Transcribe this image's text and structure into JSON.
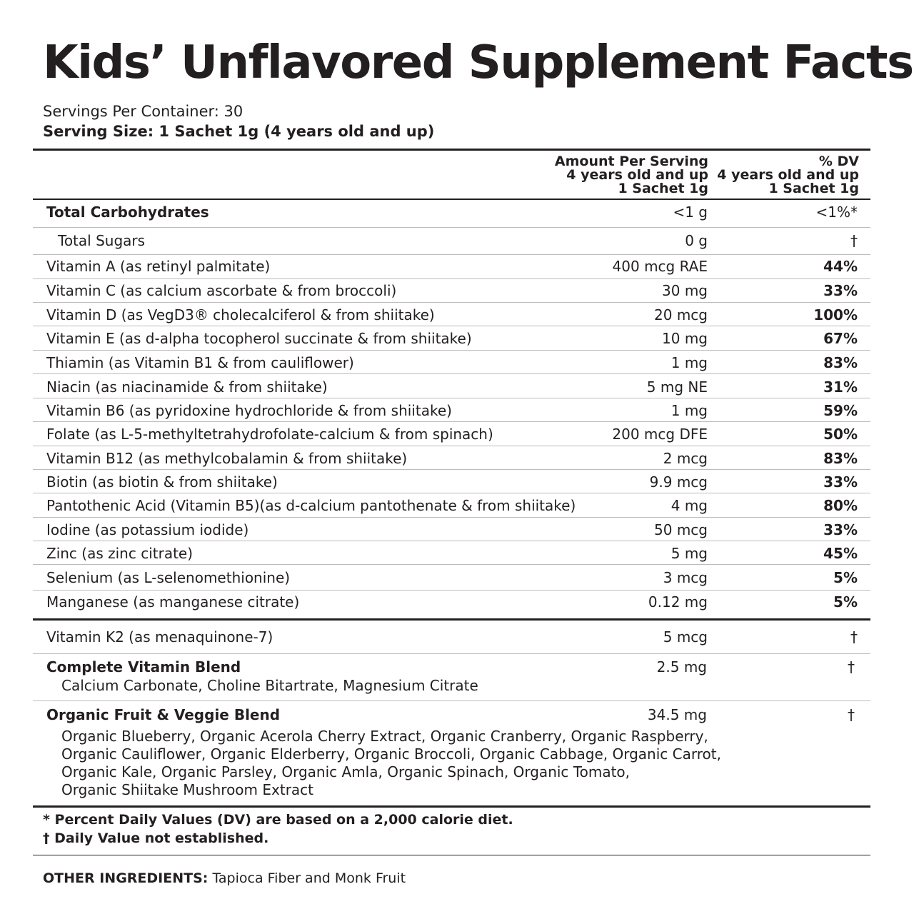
{
  "title": "Kids’ Unflavored Supplement Facts",
  "servings_per_container": "Servings Per Container: 30",
  "serving_size": "Serving Size: 1 Sachet 1g (4 years old and up)",
  "header": {
    "amount": [
      "Amount Per Serving",
      "4 years old and up",
      "1 Sachet 1g"
    ],
    "dv": [
      "% DV",
      "4 years old and up",
      "1 Sachet 1g"
    ]
  },
  "rows": [
    {
      "name": "Total Carbohydrates",
      "amount": "<1 g",
      "dv": "<1%*"
    },
    {
      "name": "Total Sugars",
      "amount": "0 g",
      "dv": "†"
    },
    {
      "name": "Vitamin A (as retinyl palmitate)",
      "amount": "400 mcg RAE",
      "dv": "44%"
    },
    {
      "name": "Vitamin C (as calcium ascorbate & from broccoli)",
      "amount": "30 mg",
      "dv": "33%"
    },
    {
      "name": "Vitamin D (as VegD3® cholecalciferol & from shiitake)",
      "amount": "20 mcg",
      "dv": "100%"
    },
    {
      "name": "Vitamin E (as d-alpha tocopherol succinate & from shiitake)",
      "amount": "10 mg",
      "dv": "67%"
    },
    {
      "name": "Thiamin (as Vitamin B1 & from cauliflower)",
      "amount": "1 mg",
      "dv": "83%"
    },
    {
      "name": "Niacin (as niacinamide & from shiitake)",
      "amount": "5 mg NE",
      "dv": "31%"
    },
    {
      "name": "Vitamin B6 (as pyridoxine hydrochloride & from shiitake)",
      "amount": "1 mg",
      "dv": "59%"
    },
    {
      "name": "Folate (as L-5-methyltetrahydrofolate-calcium & from spinach)",
      "amount": "200 mcg DFE",
      "dv": "50%"
    },
    {
      "name": "Vitamin B12 (as methylcobalamin & from shiitake)",
      "amount": "2 mcg",
      "dv": "83%"
    },
    {
      "name": "Biotin (as biotin & from shiitake)",
      "amount": "9.9 mcg",
      "dv": "33%"
    },
    {
      "name": "Pantothenic Acid (Vitamin B5)(as d-calcium pantothenate & from shiitake)",
      "amount": "4 mg",
      "dv": "80%"
    },
    {
      "name": "Iodine (as potassium iodide)",
      "amount": "50 mcg",
      "dv": "33%"
    },
    {
      "name": "Zinc (as zinc citrate)",
      "amount": "5 mg",
      "dv": "45%"
    },
    {
      "name": "Selenium (as L-selenomethionine)",
      "amount": "3 mcg",
      "dv": "5%"
    },
    {
      "name": "Manganese (as manganese citrate)",
      "amount": "0.12 mg",
      "dv": "5%"
    }
  ],
  "k2": {
    "name": "Vitamin K2 (as menaquinone-7)",
    "amount": "5 mcg",
    "dv": "†"
  },
  "vitamin_blend": {
    "name": "Complete Vitamin Blend",
    "amount": "2.5 mg",
    "dv": "†",
    "ingredients": "Calcium Carbonate, Choline Bitartrate, Magnesium Citrate"
  },
  "fruit_blend": {
    "name": "Organic Fruit & Veggie Blend",
    "amount": "34.5 mg",
    "dv": "†",
    "ingredients": [
      "Organic Blueberry, Organic Acerola Cherry Extract, Organic Cranberry, Organic Raspberry,",
      "Organic Cauliflower, Organic Elderberry, Organic Broccoli, Organic Cabbage, Organic Carrot,",
      "Organic Kale, Organic Parsley, Organic Amla, Organic Spinach, Organic Tomato,",
      "Organic Shiitake Mushroom Extract"
    ]
  },
  "footnotes": [
    "* Percent Daily Values (DV) are based on a 2,000 calorie diet.",
    "† Daily Value not established."
  ],
  "other_ingredients": {
    "label": "OTHER INGREDIENTS:",
    "text": "Tapioca Fiber and Monk Fruit"
  }
}
